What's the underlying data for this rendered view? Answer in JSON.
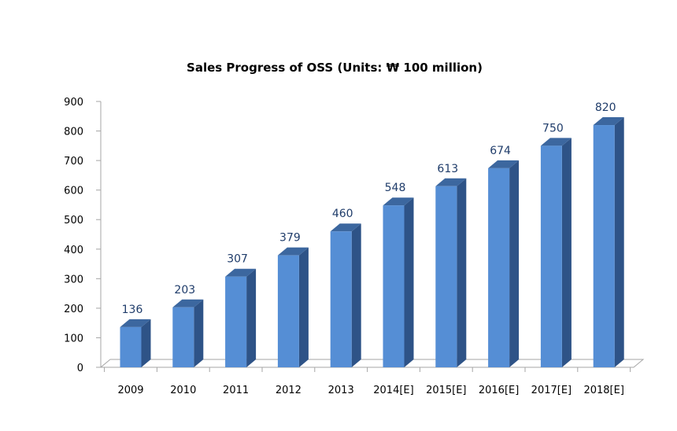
{
  "chart_data": {
    "type": "bar",
    "title": "Sales Progress of OSS (Units: ₩ 100 million)",
    "xlabel": "",
    "ylabel": "",
    "categories": [
      "2009",
      "2010",
      "2011",
      "2012",
      "2013",
      "2014[E]",
      "2015[E]",
      "2016[E]",
      "2017[E]",
      "2018[E]"
    ],
    "values": [
      136,
      203,
      307,
      379,
      460,
      548,
      613,
      674,
      750,
      820
    ],
    "ylim": [
      0,
      900
    ],
    "yticks": [
      0,
      100,
      200,
      300,
      400,
      500,
      600,
      700,
      800,
      900
    ],
    "grid": false,
    "legend": "none",
    "style": "3d-column",
    "colors": {
      "bar_front": "#558ed5",
      "bar_side": "#2e5387",
      "bar_top": "#3c679f",
      "data_label": "#1f3c6a",
      "axis": "#a6a6a6"
    }
  }
}
